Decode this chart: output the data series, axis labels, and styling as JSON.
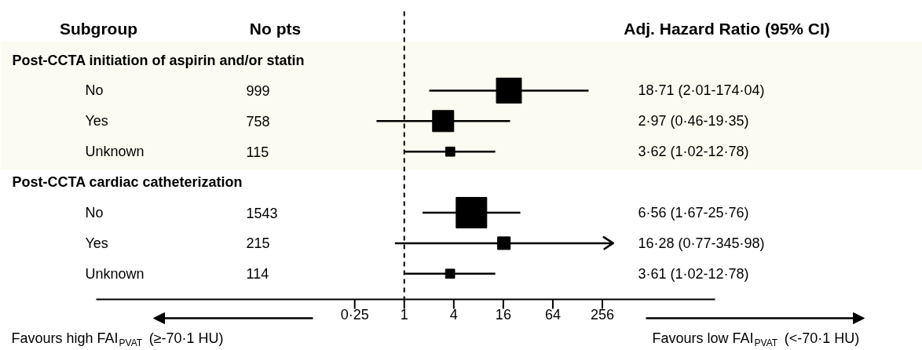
{
  "chart_data": {
    "type": "bubble",
    "orientation": "horizontal",
    "marker": "square",
    "color": "#000000",
    "log": "x",
    "ylabel": "Subgroup",
    "y2label": "No pts",
    "categories": [
      "Post-CCTA initiation of aspirin and/or statin",
      "No",
      "Yes",
      "Unknown",
      "Post-CCTA cardiac catheterization",
      "No",
      "Yes",
      "Unknown"
    ],
    "y2_categories": [
      null,
      "999",
      "758",
      "115",
      null,
      "1543",
      "215",
      "114"
    ],
    "values": [
      null,
      18.71,
      2.97,
      3.62,
      null,
      6.56,
      16.28,
      3.61
    ],
    "errors": [
      null,
      [
        2.01,
        174.04
      ],
      [
        0.46,
        19.35
      ],
      [
        1.02,
        12.78
      ],
      null,
      [
        1.67,
        25.76
      ],
      [
        0.77,
        345.98
      ],
      [
        1.02,
        12.78
      ]
    ],
    "sizes": [
      null,
      0.67,
      0.48,
      0.09,
      null,
      1,
      0.17,
      0.09
    ],
    "xlim": [
      0.00018,
      6000
    ],
    "xticks": [
      {
        "value": 0.25,
        "label": "0·25"
      },
      1,
      4,
      16,
      64,
      256
    ],
    "ref_lines": [
      {
        "axis": "x",
        "value": 1,
        "line_style": "dashed",
        "color": "#000000"
      }
    ],
    "bands": [
      {
        "axis": "y",
        "from": "Post-CCTA initiation of aspirin and/or statin",
        "to": "Unknown",
        "color": "#fcfbf1"
      }
    ],
    "annotations": [
      "Adj. Hazard Ratio (95% CI)",
      "Favours high FAI$_{PVAT}$ (≥-70·1 HU)",
      "Favours low FAI$_{PVAT}$ (<-70·1 HU)",
      "18·71 (2·01-174·04)",
      "2·97 (0·46-19·35)",
      "3·62 (1·02-12·78)",
      "6·56 (1·67-25·76)",
      "16·28 (0·77-345·98)",
      "3·61 (1·02-12·78)"
    ]
  }
}
